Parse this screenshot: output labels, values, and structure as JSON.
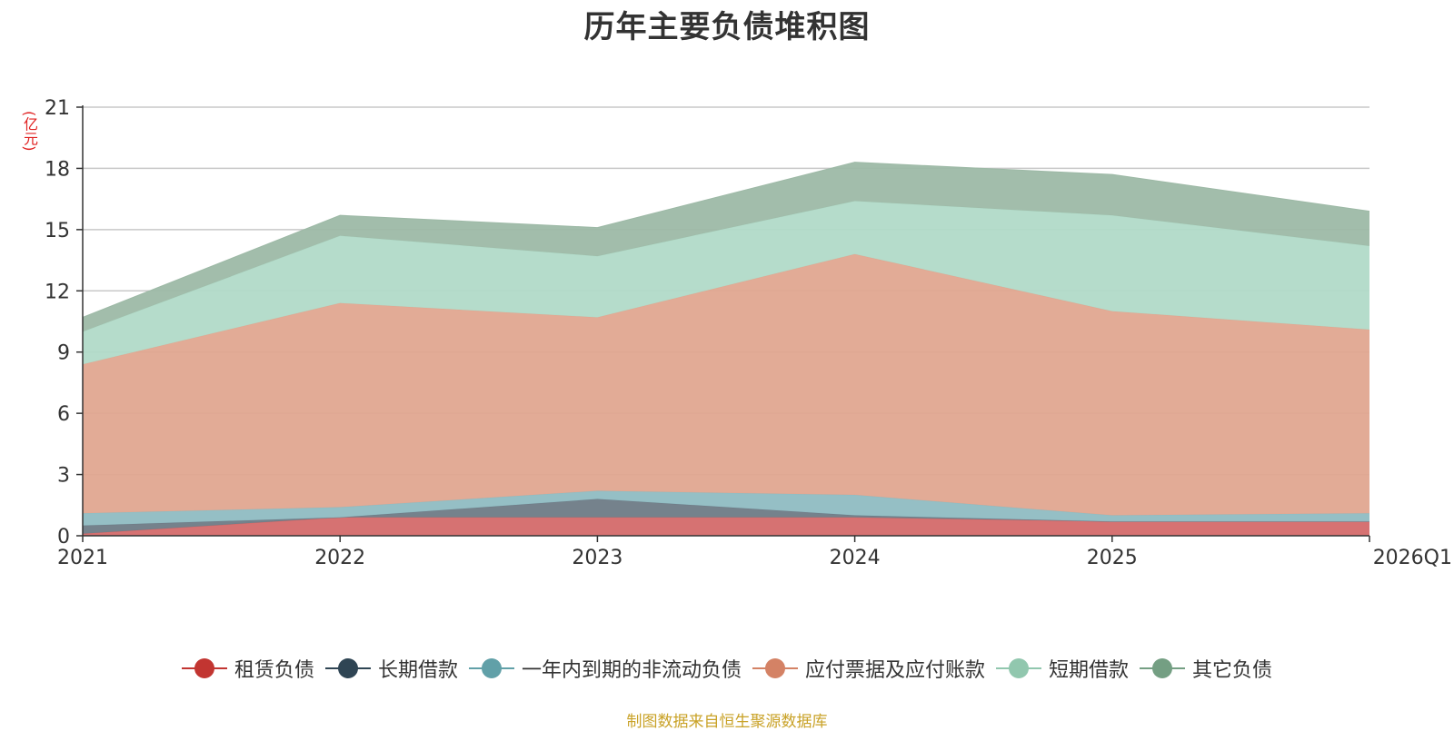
{
  "page": {
    "title": "历年主要负债堆积图",
    "unit": "(亿元)",
    "source": "制图数据来自恒生聚源数据库"
  },
  "chart_data": {
    "type": "area",
    "stacked": true,
    "title": "历年主要负债堆积图",
    "ylabel": "(亿元)",
    "xlabel": "",
    "categories": [
      "2021",
      "2022",
      "2023",
      "2024",
      "2025",
      "2026Q1"
    ],
    "ylim": [
      0,
      21
    ],
    "yticks": [
      0,
      3,
      6,
      9,
      12,
      15,
      18,
      21
    ],
    "grid": true,
    "legend_position": "bottom",
    "series": [
      {
        "name": "租赁负债",
        "color": "#c23531",
        "fill": "#d46a6a",
        "values": [
          0.1,
          0.9,
          0.9,
          0.9,
          0.7,
          0.7
        ]
      },
      {
        "name": "长期借款",
        "color": "#2f4554",
        "fill": "#6e7b86",
        "values": [
          0.4,
          0.0,
          0.9,
          0.1,
          0.0,
          0.0
        ]
      },
      {
        "name": "一年内到期的非流动负债",
        "color": "#61a0a8",
        "fill": "#8fbcc2",
        "values": [
          0.6,
          0.5,
          0.4,
          1.0,
          0.3,
          0.4
        ]
      },
      {
        "name": "应付票据及应付账款",
        "color": "#d48265",
        "fill": "#e0a690",
        "values": [
          7.3,
          10.0,
          8.5,
          11.8,
          10.0,
          9.0
        ]
      },
      {
        "name": "短期借款",
        "color": "#91c7ae",
        "fill": "#b1dac8",
        "values": [
          1.6,
          3.3,
          3.0,
          2.6,
          4.7,
          4.1
        ]
      },
      {
        "name": "其它负债",
        "color": "#749f83",
        "fill": "#9db9a6",
        "values": [
          0.7,
          1.0,
          1.4,
          1.9,
          2.0,
          1.7
        ]
      }
    ]
  }
}
